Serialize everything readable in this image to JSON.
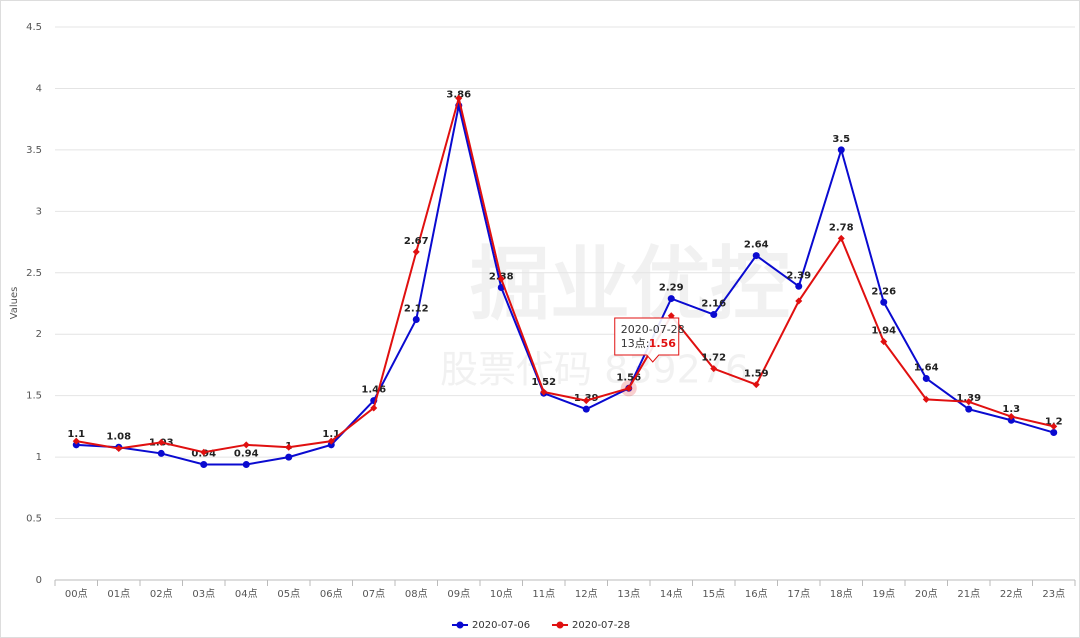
{
  "chart_data": {
    "type": "line",
    "y_label": "Values",
    "categories": [
      "00点",
      "01点",
      "02点",
      "03点",
      "04点",
      "05点",
      "06点",
      "07点",
      "08点",
      "09点",
      "10点",
      "11点",
      "12点",
      "13点",
      "14点",
      "15点",
      "16点",
      "17点",
      "18点",
      "19点",
      "20点",
      "21点",
      "22点",
      "23点"
    ],
    "series": [
      {
        "name": "2020-07-06",
        "color": "#0a0ad0",
        "values": [
          1.1,
          1.08,
          1.03,
          0.94,
          0.94,
          1,
          1.1,
          1.46,
          2.12,
          3.86,
          2.38,
          1.52,
          1.39,
          1.56,
          2.29,
          2.16,
          2.64,
          2.39,
          3.5,
          2.26,
          1.64,
          1.39,
          1.3,
          1.2
        ],
        "value_labels": [
          "1.1",
          "1.08",
          "1.03",
          "0.94",
          "0.94",
          "1",
          "1.1",
          "1.46",
          "2.12",
          "3.86",
          "2.38",
          "1.52",
          "1.39",
          "1.56",
          "2.29",
          "2.16",
          "2.64",
          "2.39",
          "3.5",
          "2.26",
          "1.64",
          "1.39",
          "1.3",
          "1.2"
        ]
      },
      {
        "name": "2020-07-28",
        "color": "#e01010",
        "values": [
          1.13,
          1.07,
          1.12,
          1.04,
          1.1,
          1.08,
          1.13,
          1.4,
          2.67,
          3.92,
          2.45,
          1.53,
          1.46,
          1.56,
          2.15,
          1.72,
          1.59,
          2.27,
          2.78,
          1.94,
          1.47,
          1.45,
          1.33,
          1.25
        ],
        "value_labels": [
          null,
          null,
          null,
          null,
          null,
          null,
          null,
          null,
          "2.67",
          null,
          null,
          null,
          null,
          null,
          null,
          "1.72",
          "1.59",
          null,
          "2.78",
          "1.94",
          null,
          null,
          null,
          null
        ]
      }
    ],
    "ylim": [
      0,
      4.5
    ],
    "yticks": [
      0,
      0.5,
      1,
      1.5,
      2,
      2.5,
      3,
      3.5,
      4,
      4.5
    ],
    "grid": true,
    "legend": "bottom",
    "tooltip": {
      "title": "2020-07-28",
      "text": "13点:",
      "value": 1.56
    },
    "watermark": [
      "掘业优控",
      "股票代码 839276"
    ]
  }
}
